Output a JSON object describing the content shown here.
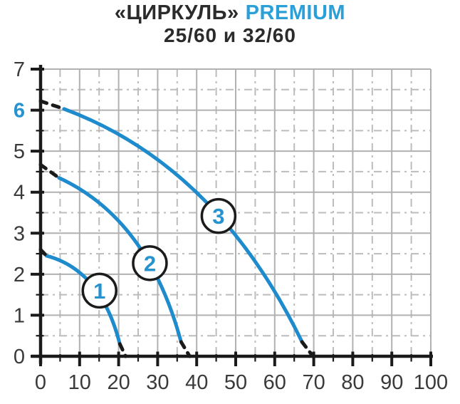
{
  "title": {
    "brand": "«ЦИРКУЛЬ»",
    "series": "PREMIUM",
    "models": "25/60 и 32/60"
  },
  "colors": {
    "accent": "#2493cf",
    "curve": "#1e8bcd",
    "dash_black": "#1a1a1a",
    "axis": "#1a1a1a",
    "grid_solid": "#b1b1b1",
    "grid_dashed": "#bcbcbc",
    "tick_text": "#3a3a3a",
    "badge_fill": "#ffffff",
    "badge_stroke": "#1b1b1b"
  },
  "chart_data": {
    "type": "line",
    "title": "«ЦИРКУЛЬ» PREMIUM",
    "subtitle": "25/60 и 32/60",
    "xlabel": "",
    "ylabel": "",
    "x_axis": {
      "min": 0,
      "max": 100,
      "major_step": 10,
      "minor_step": 5,
      "tick_labels": [
        "0",
        "10",
        "20",
        "30",
        "40",
        "50",
        "60",
        "70",
        "80",
        "90",
        "100"
      ]
    },
    "y_axis": {
      "min": 0,
      "max": 7,
      "major_step": 1,
      "minor_step": 0.5,
      "tick_labels": [
        "0",
        "1",
        "2",
        "3",
        "4",
        "5",
        "6",
        "7"
      ],
      "highlight_label": "6"
    },
    "grid": {
      "major_solid": true,
      "minor_dash_dot": true
    },
    "legend_position": "none",
    "series": [
      {
        "name": "curve-1",
        "badge": "1",
        "badge_at": [
          15.1,
          1.6
        ],
        "lead_dash": [
          [
            0,
            2.6
          ],
          [
            1.5,
            2.45
          ]
        ],
        "solid_bezier": [
          [
            1.5,
            2.45
          ],
          [
            15.5,
            2.1
          ],
          [
            20.3,
            0.3
          ]
        ],
        "tail_dash": [
          [
            20.3,
            0.3
          ],
          [
            21.8,
            0
          ]
        ]
      },
      {
        "name": "curve-2",
        "badge": "2",
        "badge_at": [
          28.0,
          2.27
        ],
        "lead_dash": [
          [
            0,
            4.67
          ],
          [
            4.7,
            4.35
          ]
        ],
        "solid_bezier": [
          [
            4.7,
            4.35
          ],
          [
            27.5,
            3.35
          ],
          [
            36,
            0.35
          ]
        ],
        "tail_dash": [
          [
            36,
            0.35
          ],
          [
            38.2,
            0
          ]
        ]
      },
      {
        "name": "curve-3",
        "badge": "3",
        "badge_at": [
          45.6,
          3.42
        ],
        "lead_dash": [
          [
            0,
            6.22
          ],
          [
            6,
            6.03
          ]
        ],
        "solid_bezier": [
          [
            6,
            6.03
          ],
          [
            45,
            4.65
          ],
          [
            67,
            0.35
          ]
        ],
        "tail_dash": [
          [
            67,
            0.35
          ],
          [
            69.8,
            0
          ]
        ]
      }
    ]
  }
}
